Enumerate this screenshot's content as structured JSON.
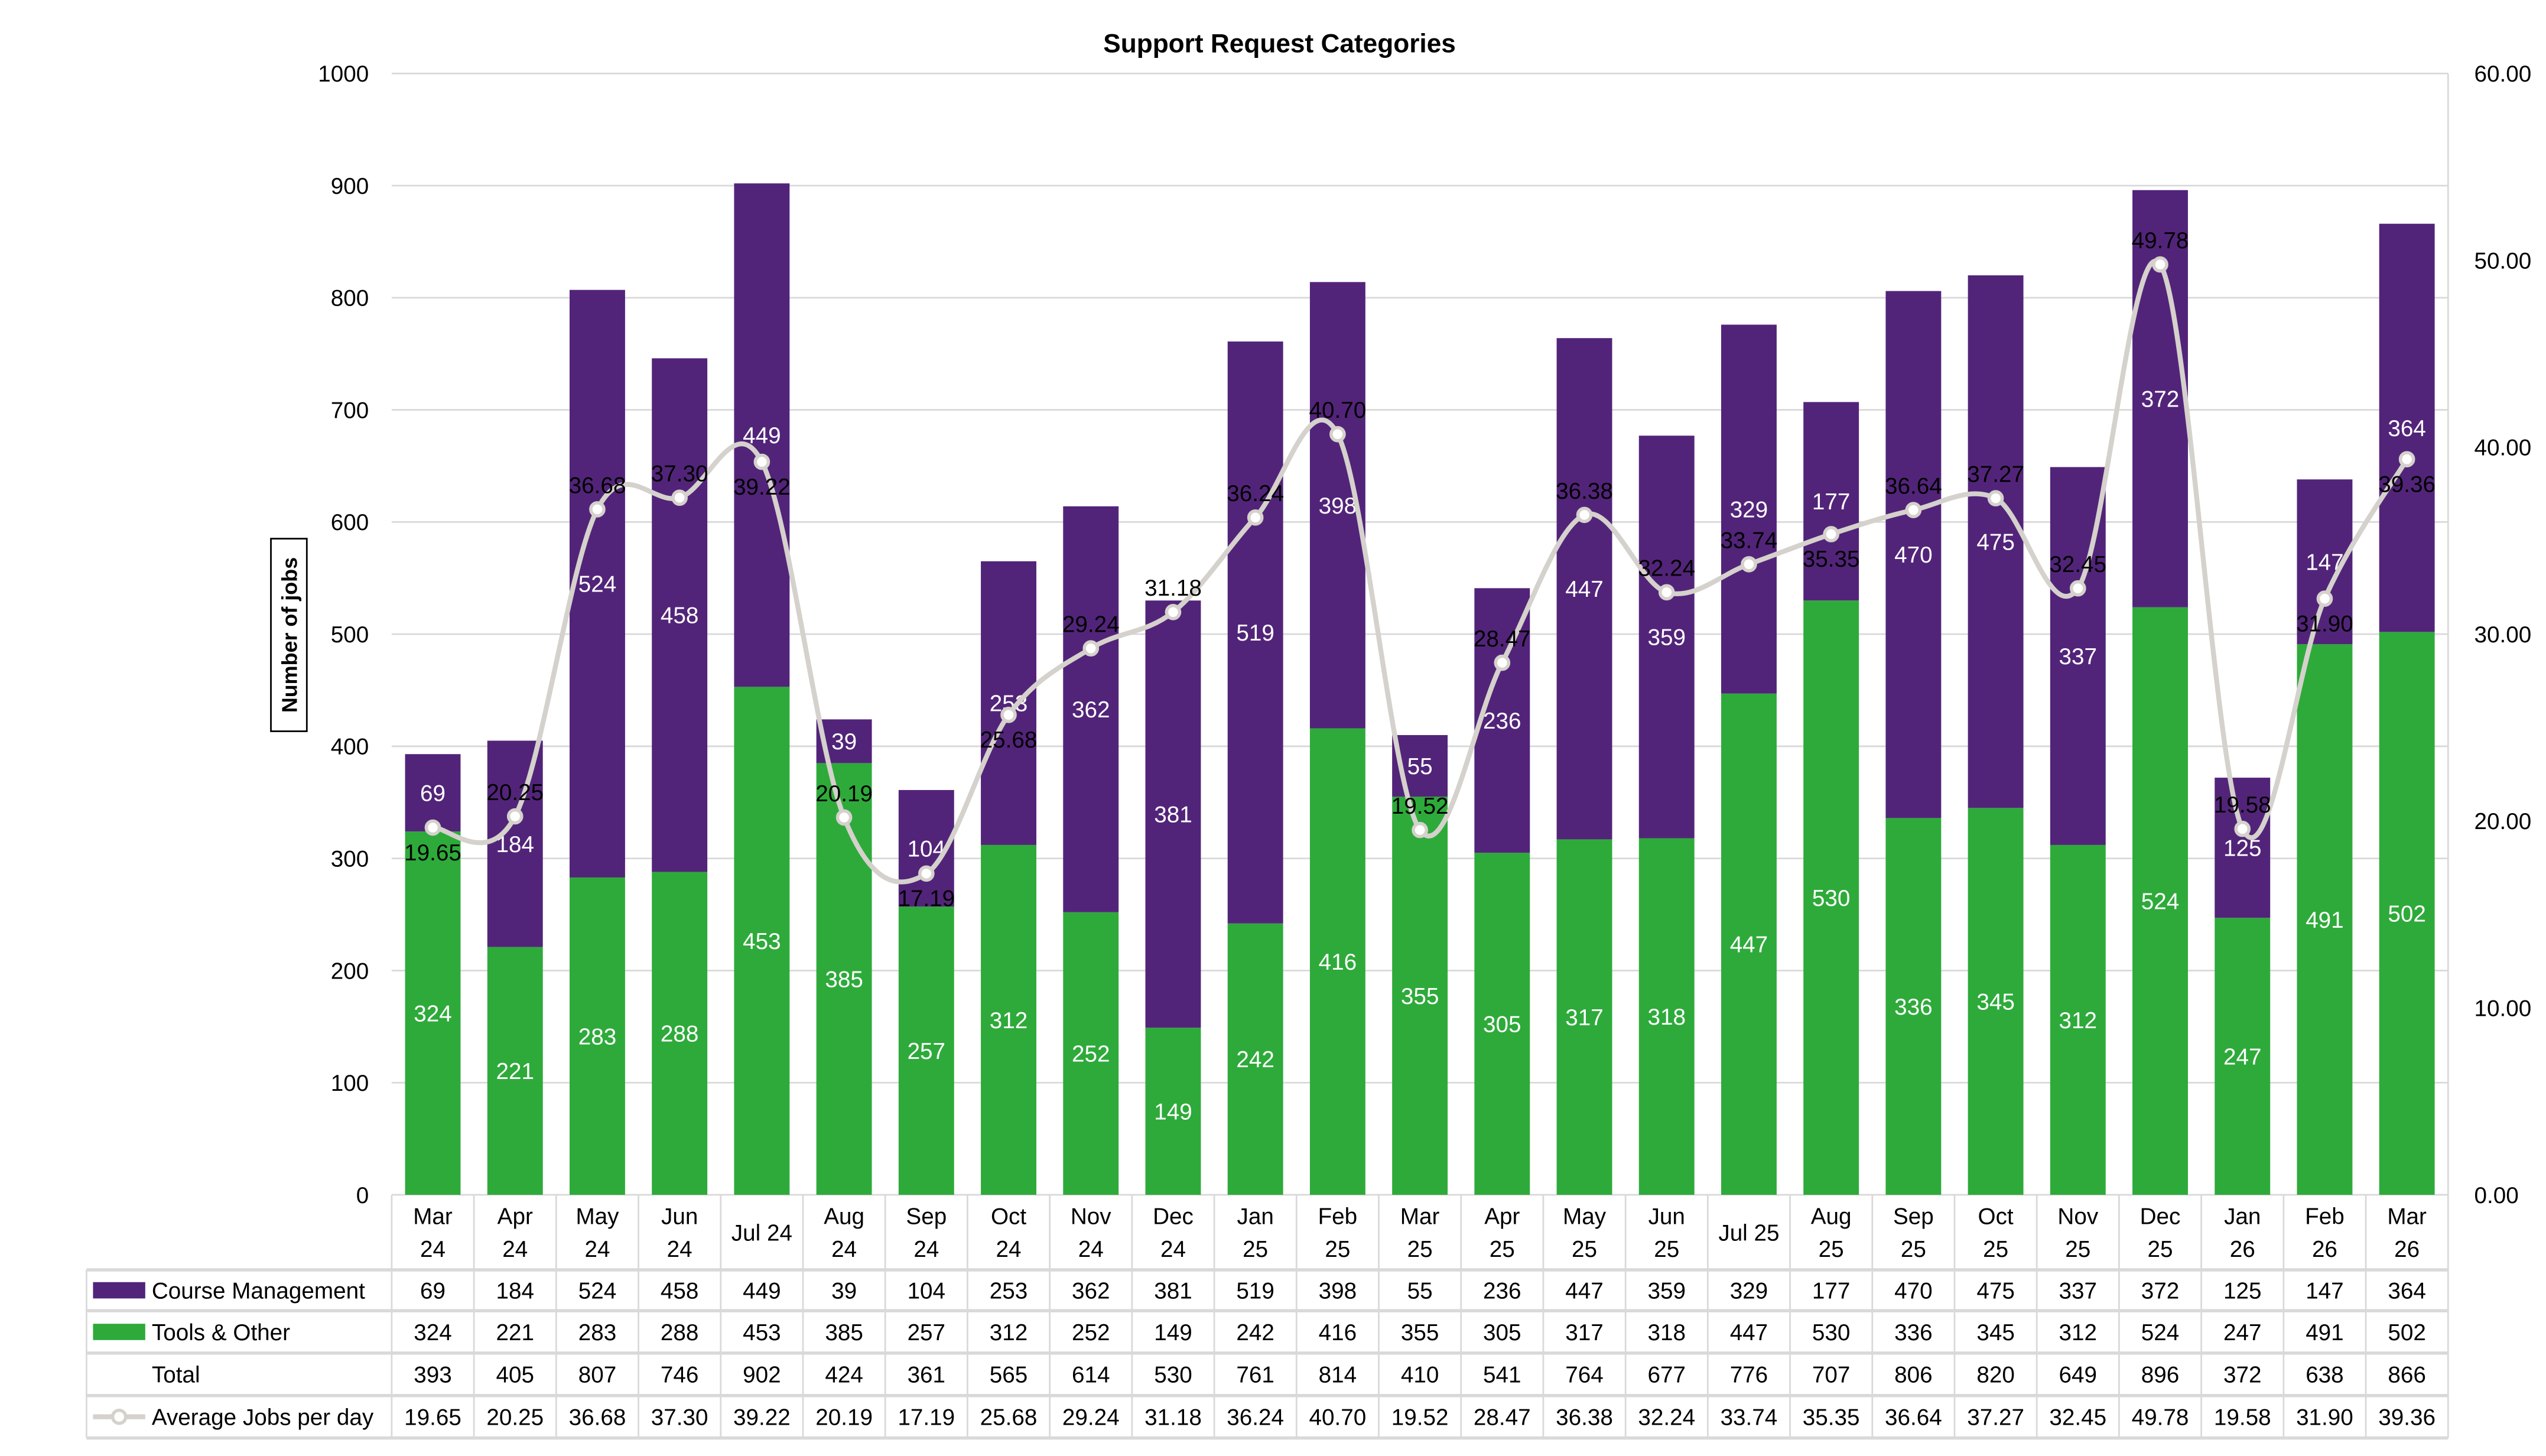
{
  "chart_data": {
    "type": "bar",
    "stacked": true,
    "title": "Support Request Categories",
    "ylabel": "Number of jobs",
    "ylim": [
      0,
      1000
    ],
    "y_ticks": [
      "0",
      "100",
      "200",
      "300",
      "400",
      "500",
      "600",
      "700",
      "800",
      "900",
      "1000"
    ],
    "y2lim": [
      0,
      60
    ],
    "y2_ticks": [
      "0.00",
      "10.00",
      "20.00",
      "30.00",
      "40.00",
      "50.00",
      "60.00"
    ],
    "grid": true,
    "legend": "data-table-below",
    "categories": [
      [
        "Mar",
        "24"
      ],
      [
        "Apr",
        "24"
      ],
      [
        "May",
        "24"
      ],
      [
        "Jun",
        "24"
      ],
      [
        "Jul 24"
      ],
      [
        "Aug",
        "24"
      ],
      [
        "Sep",
        "24"
      ],
      [
        "Oct",
        "24"
      ],
      [
        "Nov",
        "24"
      ],
      [
        "Dec",
        "24"
      ],
      [
        "Jan",
        "25"
      ],
      [
        "Feb",
        "25"
      ],
      [
        "Mar",
        "25"
      ],
      [
        "Apr",
        "25"
      ],
      [
        "May",
        "25"
      ],
      [
        "Jun",
        "25"
      ],
      [
        "Jul 25"
      ],
      [
        "Aug",
        "25"
      ],
      [
        "Sep",
        "25"
      ],
      [
        "Oct",
        "25"
      ],
      [
        "Nov",
        "25"
      ],
      [
        "Dec",
        "25"
      ],
      [
        "Jan",
        "26"
      ],
      [
        "Feb",
        "26"
      ],
      [
        "Mar",
        "26"
      ]
    ],
    "series": [
      {
        "name": "Course Management",
        "type": "bar",
        "color": "#522479",
        "values": [
          69,
          184,
          524,
          458,
          449,
          39,
          104,
          253,
          362,
          381,
          519,
          398,
          55,
          236,
          447,
          359,
          329,
          177,
          470,
          475,
          337,
          372,
          125,
          147,
          364
        ]
      },
      {
        "name": "Tools & Other",
        "type": "bar",
        "color": "#2EAA3A",
        "values": [
          324,
          221,
          283,
          288,
          453,
          385,
          257,
          312,
          252,
          149,
          242,
          416,
          355,
          305,
          317,
          318,
          447,
          530,
          336,
          345,
          312,
          524,
          247,
          491,
          502
        ]
      },
      {
        "name": "Total",
        "type": "table-only",
        "values": [
          393,
          405,
          807,
          746,
          902,
          424,
          361,
          565,
          614,
          530,
          761,
          814,
          410,
          541,
          764,
          677,
          776,
          707,
          806,
          820,
          649,
          896,
          372,
          638,
          866
        ]
      },
      {
        "name": "Average Jobs per day",
        "type": "line",
        "axis": "right",
        "color": "#D5D1CC",
        "values": [
          "19.65",
          "20.25",
          "36.68",
          "37.30",
          "39.22",
          "20.19",
          "17.19",
          "25.68",
          "29.24",
          "31.18",
          "36.24",
          "40.70",
          "19.52",
          "28.47",
          "36.38",
          "32.24",
          "33.74",
          "35.35",
          "36.64",
          "37.27",
          "32.45",
          "49.78",
          "19.58",
          "31.90",
          "39.36"
        ]
      }
    ]
  }
}
